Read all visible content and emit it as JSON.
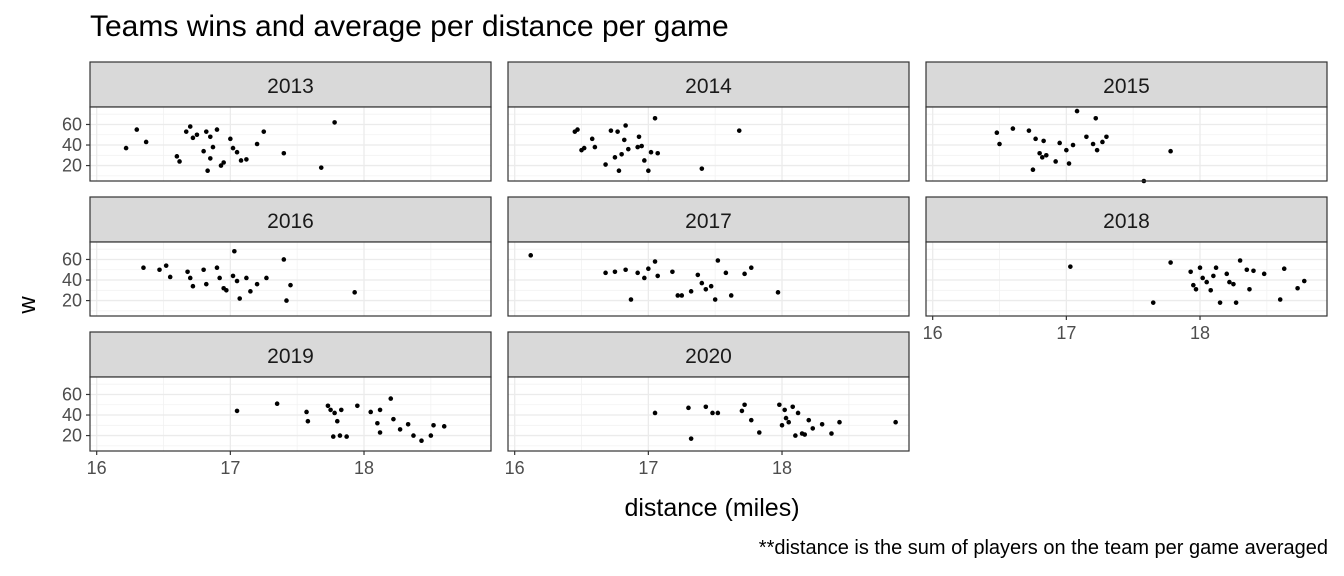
{
  "chart_data": {
    "type": "scatter",
    "title": "Teams wins and average per distance per game",
    "xlabel": "distance (miles)",
    "ylabel": "w",
    "caption": "**distance is the sum of players on the team per game averaged",
    "xlim": [
      15.95,
      18.95
    ],
    "ylim": [
      5,
      77
    ],
    "x_ticks": [
      16,
      17,
      18
    ],
    "y_ticks": [
      20,
      40,
      60
    ],
    "grid": true,
    "panels": [
      {
        "label": "2013",
        "x": [
          16.22,
          16.3,
          16.37,
          16.6,
          16.62,
          16.67,
          16.7,
          16.72,
          16.75,
          16.8,
          16.82,
          16.83,
          16.85,
          16.85,
          16.87,
          16.9,
          16.93,
          16.95,
          17.0,
          17.02,
          17.05,
          17.08,
          17.12,
          17.2,
          17.25,
          17.4,
          17.68,
          17.78
        ],
        "y": [
          37,
          55,
          43,
          29,
          24,
          53,
          58,
          47,
          50,
          34,
          53,
          15,
          27,
          48,
          38,
          55,
          20,
          23,
          46,
          37,
          33,
          25,
          26,
          41,
          53,
          32,
          18,
          62
        ]
      },
      {
        "label": "2014",
        "x": [
          16.45,
          16.47,
          16.5,
          16.52,
          16.58,
          16.6,
          16.68,
          16.72,
          16.75,
          16.77,
          16.78,
          16.8,
          16.82,
          16.83,
          16.85,
          16.92,
          16.93,
          16.95,
          16.97,
          17.0,
          17.02,
          17.05,
          17.07,
          17.4,
          17.68
        ],
        "y": [
          53,
          55,
          35,
          37,
          46,
          38,
          21,
          54,
          28,
          53,
          15,
          31,
          45,
          59,
          36,
          38,
          48,
          39,
          25,
          15,
          33,
          66,
          32,
          17,
          54
        ]
      },
      {
        "label": "2015",
        "x": [
          16.48,
          16.5,
          16.6,
          16.72,
          16.75,
          16.77,
          16.8,
          16.82,
          16.83,
          16.85,
          16.92,
          16.95,
          17.0,
          17.02,
          17.05,
          17.08,
          17.15,
          17.2,
          17.22,
          17.23,
          17.27,
          17.3,
          17.58,
          17.78
        ],
        "y": [
          52,
          41,
          56,
          54,
          16,
          46,
          32,
          28,
          44,
          30,
          24,
          42,
          35,
          22,
          40,
          73,
          48,
          41,
          66,
          35,
          43,
          48,
          5,
          34
        ]
      },
      {
        "label": "2016",
        "x": [
          16.35,
          16.47,
          16.52,
          16.55,
          16.68,
          16.7,
          16.72,
          16.8,
          16.82,
          16.9,
          16.92,
          16.95,
          16.97,
          17.02,
          17.03,
          17.05,
          17.07,
          17.12,
          17.15,
          17.2,
          17.27,
          17.4,
          17.42,
          17.45,
          17.93
        ],
        "y": [
          52,
          50,
          54,
          43,
          48,
          42,
          34,
          50,
          36,
          52,
          42,
          32,
          30,
          44,
          68,
          39,
          22,
          42,
          29,
          36,
          42,
          60,
          20,
          35,
          28
        ]
      },
      {
        "label": "2017",
        "x": [
          16.12,
          16.68,
          16.75,
          16.83,
          16.87,
          16.92,
          16.97,
          17.0,
          17.05,
          17.07,
          17.18,
          17.22,
          17.25,
          17.32,
          17.37,
          17.4,
          17.43,
          17.47,
          17.5,
          17.52,
          17.58,
          17.62,
          17.72,
          17.77,
          17.97
        ],
        "y": [
          64,
          47,
          48,
          50,
          21,
          47,
          42,
          51,
          58,
          44,
          48,
          25,
          25,
          29,
          45,
          37,
          31,
          34,
          21,
          59,
          47,
          25,
          46,
          52,
          28
        ]
      },
      {
        "label": "2018",
        "x": [
          17.03,
          17.65,
          17.78,
          17.93,
          17.95,
          17.97,
          18.0,
          18.02,
          18.05,
          18.08,
          18.1,
          18.12,
          18.15,
          18.2,
          18.22,
          18.25,
          18.27,
          18.3,
          18.35,
          18.37,
          18.4,
          18.48,
          18.6,
          18.63,
          18.73,
          18.78
        ],
        "y": [
          53,
          18,
          57,
          48,
          35,
          31,
          52,
          42,
          38,
          30,
          44,
          52,
          18,
          46,
          38,
          36,
          18,
          59,
          50,
          31,
          49,
          46,
          21,
          51,
          32,
          39
        ]
      },
      {
        "label": "2019",
        "x": [
          17.05,
          17.35,
          17.57,
          17.58,
          17.73,
          17.75,
          17.77,
          17.78,
          17.8,
          17.82,
          17.83,
          17.87,
          17.95,
          18.05,
          18.1,
          18.12,
          18.12,
          18.2,
          18.22,
          18.27,
          18.33,
          18.37,
          18.43,
          18.5,
          18.52,
          18.6
        ],
        "y": [
          44,
          51,
          43,
          34,
          49,
          45,
          19,
          42,
          34,
          20,
          45,
          19,
          49,
          43,
          32,
          23,
          45,
          56,
          36,
          26,
          31,
          20,
          15,
          20,
          30,
          29
        ]
      },
      {
        "label": "2020",
        "x": [
          17.05,
          17.3,
          17.32,
          17.43,
          17.48,
          17.52,
          17.7,
          17.72,
          17.77,
          17.83,
          17.98,
          18.0,
          18.02,
          18.03,
          18.05,
          18.08,
          18.1,
          18.12,
          18.15,
          18.17,
          18.2,
          18.23,
          18.3,
          18.37,
          18.43,
          18.85
        ],
        "y": [
          42,
          47,
          17,
          48,
          42,
          42,
          44,
          50,
          35,
          23,
          50,
          30,
          45,
          37,
          33,
          48,
          20,
          42,
          22,
          21,
          35,
          27,
          31,
          22,
          33,
          33
        ]
      }
    ]
  }
}
